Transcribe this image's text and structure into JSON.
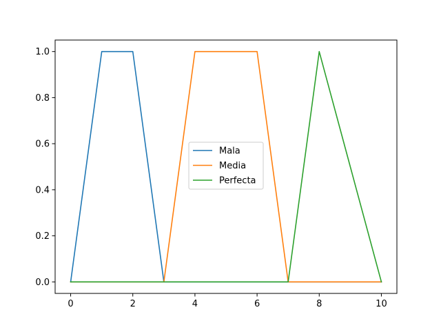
{
  "chart_data": {
    "type": "line",
    "title": "",
    "xlabel": "",
    "ylabel": "",
    "xlim": [
      -0.5,
      10.5
    ],
    "ylim": [
      -0.05,
      1.05
    ],
    "xticks": [
      0,
      2,
      4,
      6,
      8,
      10
    ],
    "yticks": [
      0.0,
      0.2,
      0.4,
      0.6,
      0.8,
      1.0
    ],
    "xtick_labels": [
      "0",
      "2",
      "4",
      "6",
      "8",
      "10"
    ],
    "ytick_labels": [
      "0.0",
      "0.2",
      "0.4",
      "0.6",
      "0.8",
      "1.0"
    ],
    "grid": false,
    "legend_position": "center",
    "series": [
      {
        "name": "Mala",
        "color": "#1f77b4",
        "x": [
          0,
          1,
          2,
          3,
          4,
          5,
          6,
          7,
          8,
          9,
          10
        ],
        "y": [
          0,
          1,
          1,
          0,
          0,
          0,
          0,
          0,
          0,
          0,
          0
        ]
      },
      {
        "name": "Media",
        "color": "#ff7f0e",
        "x": [
          0,
          1,
          2,
          3,
          4,
          5,
          6,
          7,
          8,
          9,
          10
        ],
        "y": [
          0,
          0,
          0,
          0,
          1,
          1,
          1,
          0,
          0,
          0,
          0
        ]
      },
      {
        "name": "Perfecta",
        "color": "#2ca02c",
        "x": [
          0,
          1,
          2,
          3,
          4,
          5,
          6,
          7,
          8,
          9,
          10
        ],
        "y": [
          0,
          0,
          0,
          0,
          0,
          0,
          0,
          0,
          1,
          0.5,
          0
        ]
      }
    ]
  }
}
